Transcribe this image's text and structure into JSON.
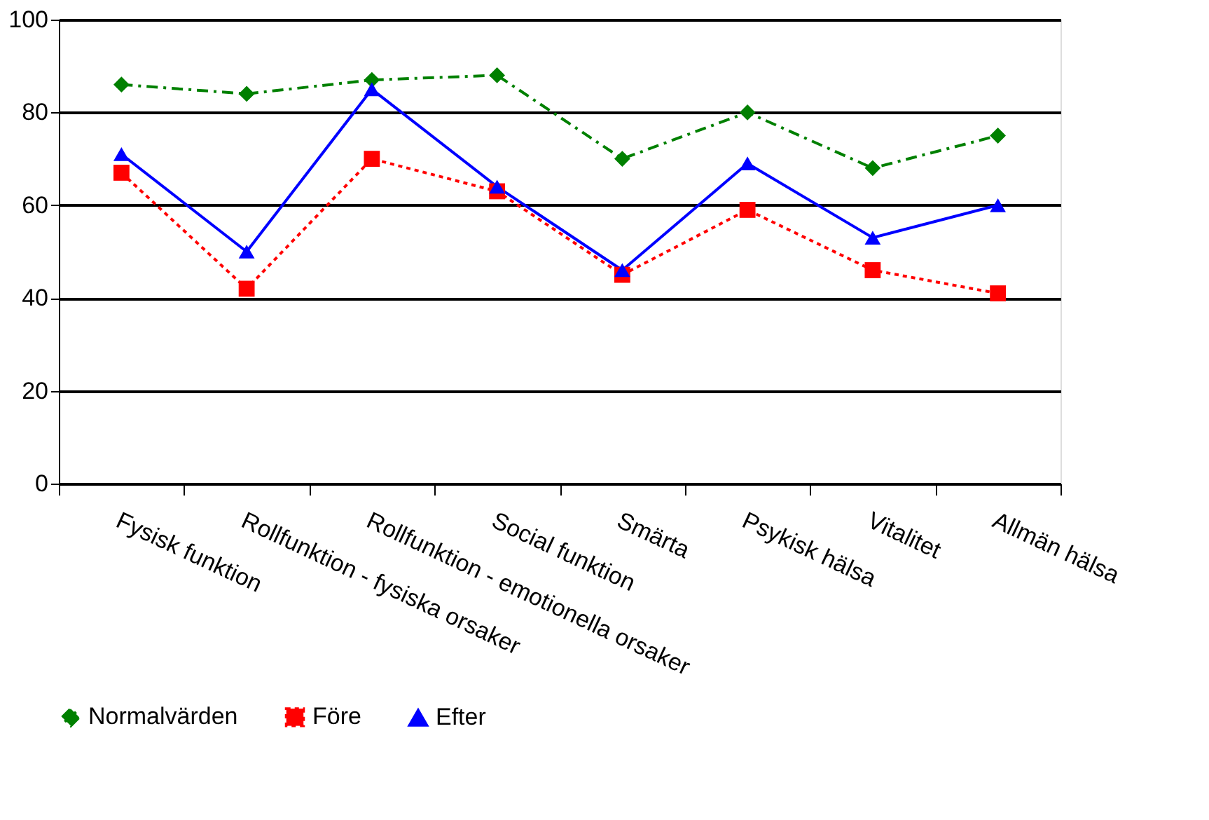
{
  "chart_data": {
    "type": "line",
    "categories": [
      "Fysisk funktion",
      "Rollfunktion - fysiska orsaker",
      "Rollfunktion - emotionella orsaker",
      "Social funktion",
      "Smärta",
      "Psykisk hälsa",
      "Vitalitet",
      "Allmän hälsa"
    ],
    "series": [
      {
        "name": "Normalvärden",
        "color": "#008000",
        "marker": "diamond",
        "line_style": "dashed",
        "values": [
          86,
          84,
          87,
          88,
          70,
          80,
          68,
          75
        ]
      },
      {
        "name": "Före",
        "color": "#ff0000",
        "marker": "square",
        "line_style": "dotted",
        "values": [
          67,
          42,
          70,
          63,
          45,
          59,
          46,
          41
        ]
      },
      {
        "name": "Efter",
        "color": "#0000ff",
        "marker": "triangle",
        "line_style": "solid",
        "values": [
          71,
          50,
          85,
          64,
          46,
          69,
          53,
          60
        ]
      }
    ],
    "ylim": [
      0,
      100
    ],
    "yticks": [
      0,
      20,
      40,
      60,
      80,
      100
    ],
    "grid": "y",
    "legend": "bottom"
  }
}
